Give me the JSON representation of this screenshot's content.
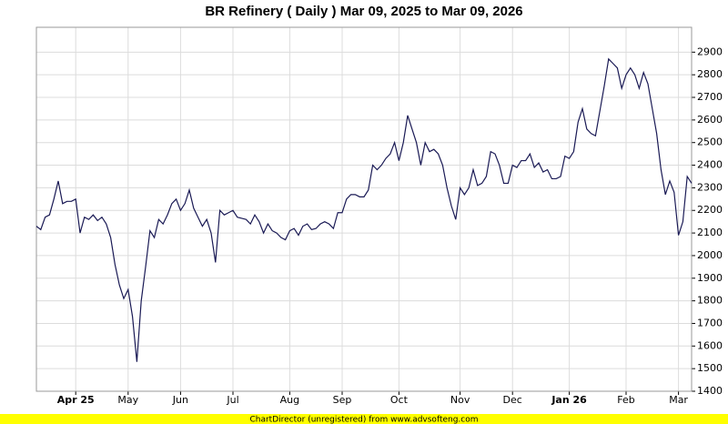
{
  "chart_data": {
    "type": "line",
    "title": "BR Refinery ( Daily ) Mar 09, 2025 to Mar 09, 2026",
    "footer": "ChartDirector (unregistered) from www.advsofteng.com",
    "categories": [
      null,
      null,
      null,
      null,
      null,
      null,
      null,
      null,
      null,
      "Apr 25",
      null,
      null,
      null,
      null,
      null,
      null,
      null,
      null,
      null,
      null,
      null,
      "May",
      null,
      null,
      null,
      null,
      null,
      null,
      null,
      null,
      null,
      null,
      null,
      "Jun",
      null,
      null,
      null,
      null,
      null,
      null,
      null,
      null,
      null,
      null,
      null,
      "Jul",
      null,
      null,
      null,
      null,
      null,
      null,
      null,
      null,
      null,
      null,
      null,
      null,
      "Aug",
      null,
      null,
      null,
      null,
      null,
      null,
      null,
      null,
      null,
      null,
      null,
      "Sep",
      null,
      null,
      null,
      null,
      null,
      null,
      null,
      null,
      null,
      null,
      null,
      null,
      "Oct",
      null,
      null,
      null,
      null,
      null,
      null,
      null,
      null,
      null,
      null,
      null,
      null,
      null,
      "Nov",
      null,
      null,
      null,
      null,
      null,
      null,
      null,
      null,
      null,
      null,
      null,
      "Dec",
      null,
      null,
      null,
      null,
      null,
      null,
      null,
      null,
      null,
      null,
      null,
      null,
      "Jan 26",
      null,
      null,
      null,
      null,
      null,
      null,
      null,
      null,
      null,
      null,
      null,
      null,
      "Feb",
      null,
      null,
      null,
      null,
      null,
      null,
      null,
      null,
      null,
      null,
      null,
      "Mar",
      null,
      null,
      null
    ],
    "series": [
      {
        "name": "BR Refinery",
        "color": "#1a1a55",
        "values": [
          2130,
          2115,
          2170,
          2180,
          2250,
          2330,
          2230,
          2240,
          2240,
          2250,
          2100,
          2170,
          2160,
          2180,
          2155,
          2170,
          2140,
          2080,
          1960,
          1870,
          1810,
          1850,
          1730,
          1530,
          1800,
          1950,
          2110,
          2080,
          2160,
          2140,
          2180,
          2230,
          2250,
          2200,
          2230,
          2290,
          2210,
          2170,
          2130,
          2160,
          2100,
          1970,
          2200,
          2180,
          2190,
          2200,
          2170,
          2165,
          2160,
          2140,
          2180,
          2150,
          2100,
          2140,
          2110,
          2100,
          2080,
          2070,
          2110,
          2120,
          2090,
          2130,
          2140,
          2115,
          2120,
          2140,
          2150,
          2140,
          2120,
          2190,
          2190,
          2250,
          2270,
          2270,
          2260,
          2260,
          2290,
          2400,
          2380,
          2400,
          2430,
          2450,
          2500,
          2420,
          2500,
          2620,
          2560,
          2500,
          2400,
          2500,
          2460,
          2470,
          2450,
          2400,
          2300,
          2220,
          2160,
          2300,
          2270,
          2300,
          2380,
          2310,
          2320,
          2350,
          2460,
          2450,
          2400,
          2320,
          2320,
          2400,
          2390,
          2420,
          2420,
          2450,
          2390,
          2410,
          2370,
          2380,
          2340,
          2340,
          2350,
          2440,
          2430,
          2460,
          2590,
          2650,
          2560,
          2540,
          2530,
          2640,
          2750,
          2870,
          2850,
          2830,
          2740,
          2800,
          2830,
          2800,
          2740,
          2810,
          2760,
          2650,
          2540,
          2380,
          2270,
          2330,
          2280,
          2090,
          2150,
          2350,
          2320
        ]
      }
    ],
    "ylim": [
      1400,
      3010
    ],
    "yticks": [
      1400,
      1500,
      1600,
      1700,
      1800,
      1900,
      2000,
      2100,
      2200,
      2300,
      2400,
      2500,
      2600,
      2700,
      2800,
      2900
    ],
    "grid": true
  }
}
